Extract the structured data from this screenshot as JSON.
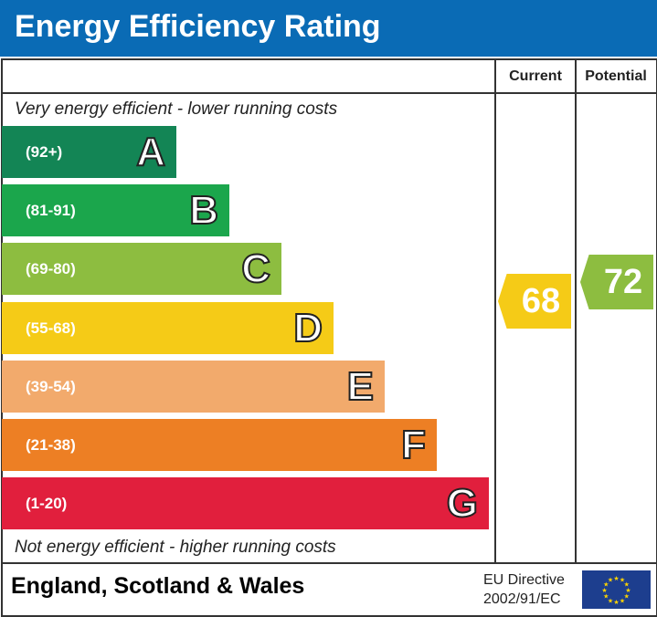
{
  "header": {
    "title": "Energy Efficiency Rating"
  },
  "columns": {
    "current": "Current",
    "potential": "Potential"
  },
  "captions": {
    "top": "Very energy efficient - lower running costs",
    "bottom": "Not energy efficient - higher running costs"
  },
  "footer": {
    "region": "England, Scotland & Wales",
    "directive_line1": "EU Directive",
    "directive_line2": "2002/91/EC",
    "flag_icon": "eu-flag-icon"
  },
  "chart_data": {
    "type": "bar",
    "categories": [
      "A",
      "B",
      "C",
      "D",
      "E",
      "F",
      "G"
    ],
    "ranges": [
      "(92+)",
      "(81-91)",
      "(69-80)",
      "(55-68)",
      "(39-54)",
      "(21-38)",
      "(1-20)"
    ],
    "colors": [
      "#138555",
      "#1ba64c",
      "#8dbd40",
      "#f5cb17",
      "#f2aa6c",
      "#ed7f24",
      "#e11f3d"
    ],
    "current": {
      "value": "68",
      "color": "#f5cb17",
      "band": "D"
    },
    "potential": {
      "value": "72",
      "color": "#8dbd40",
      "band": "C"
    }
  }
}
